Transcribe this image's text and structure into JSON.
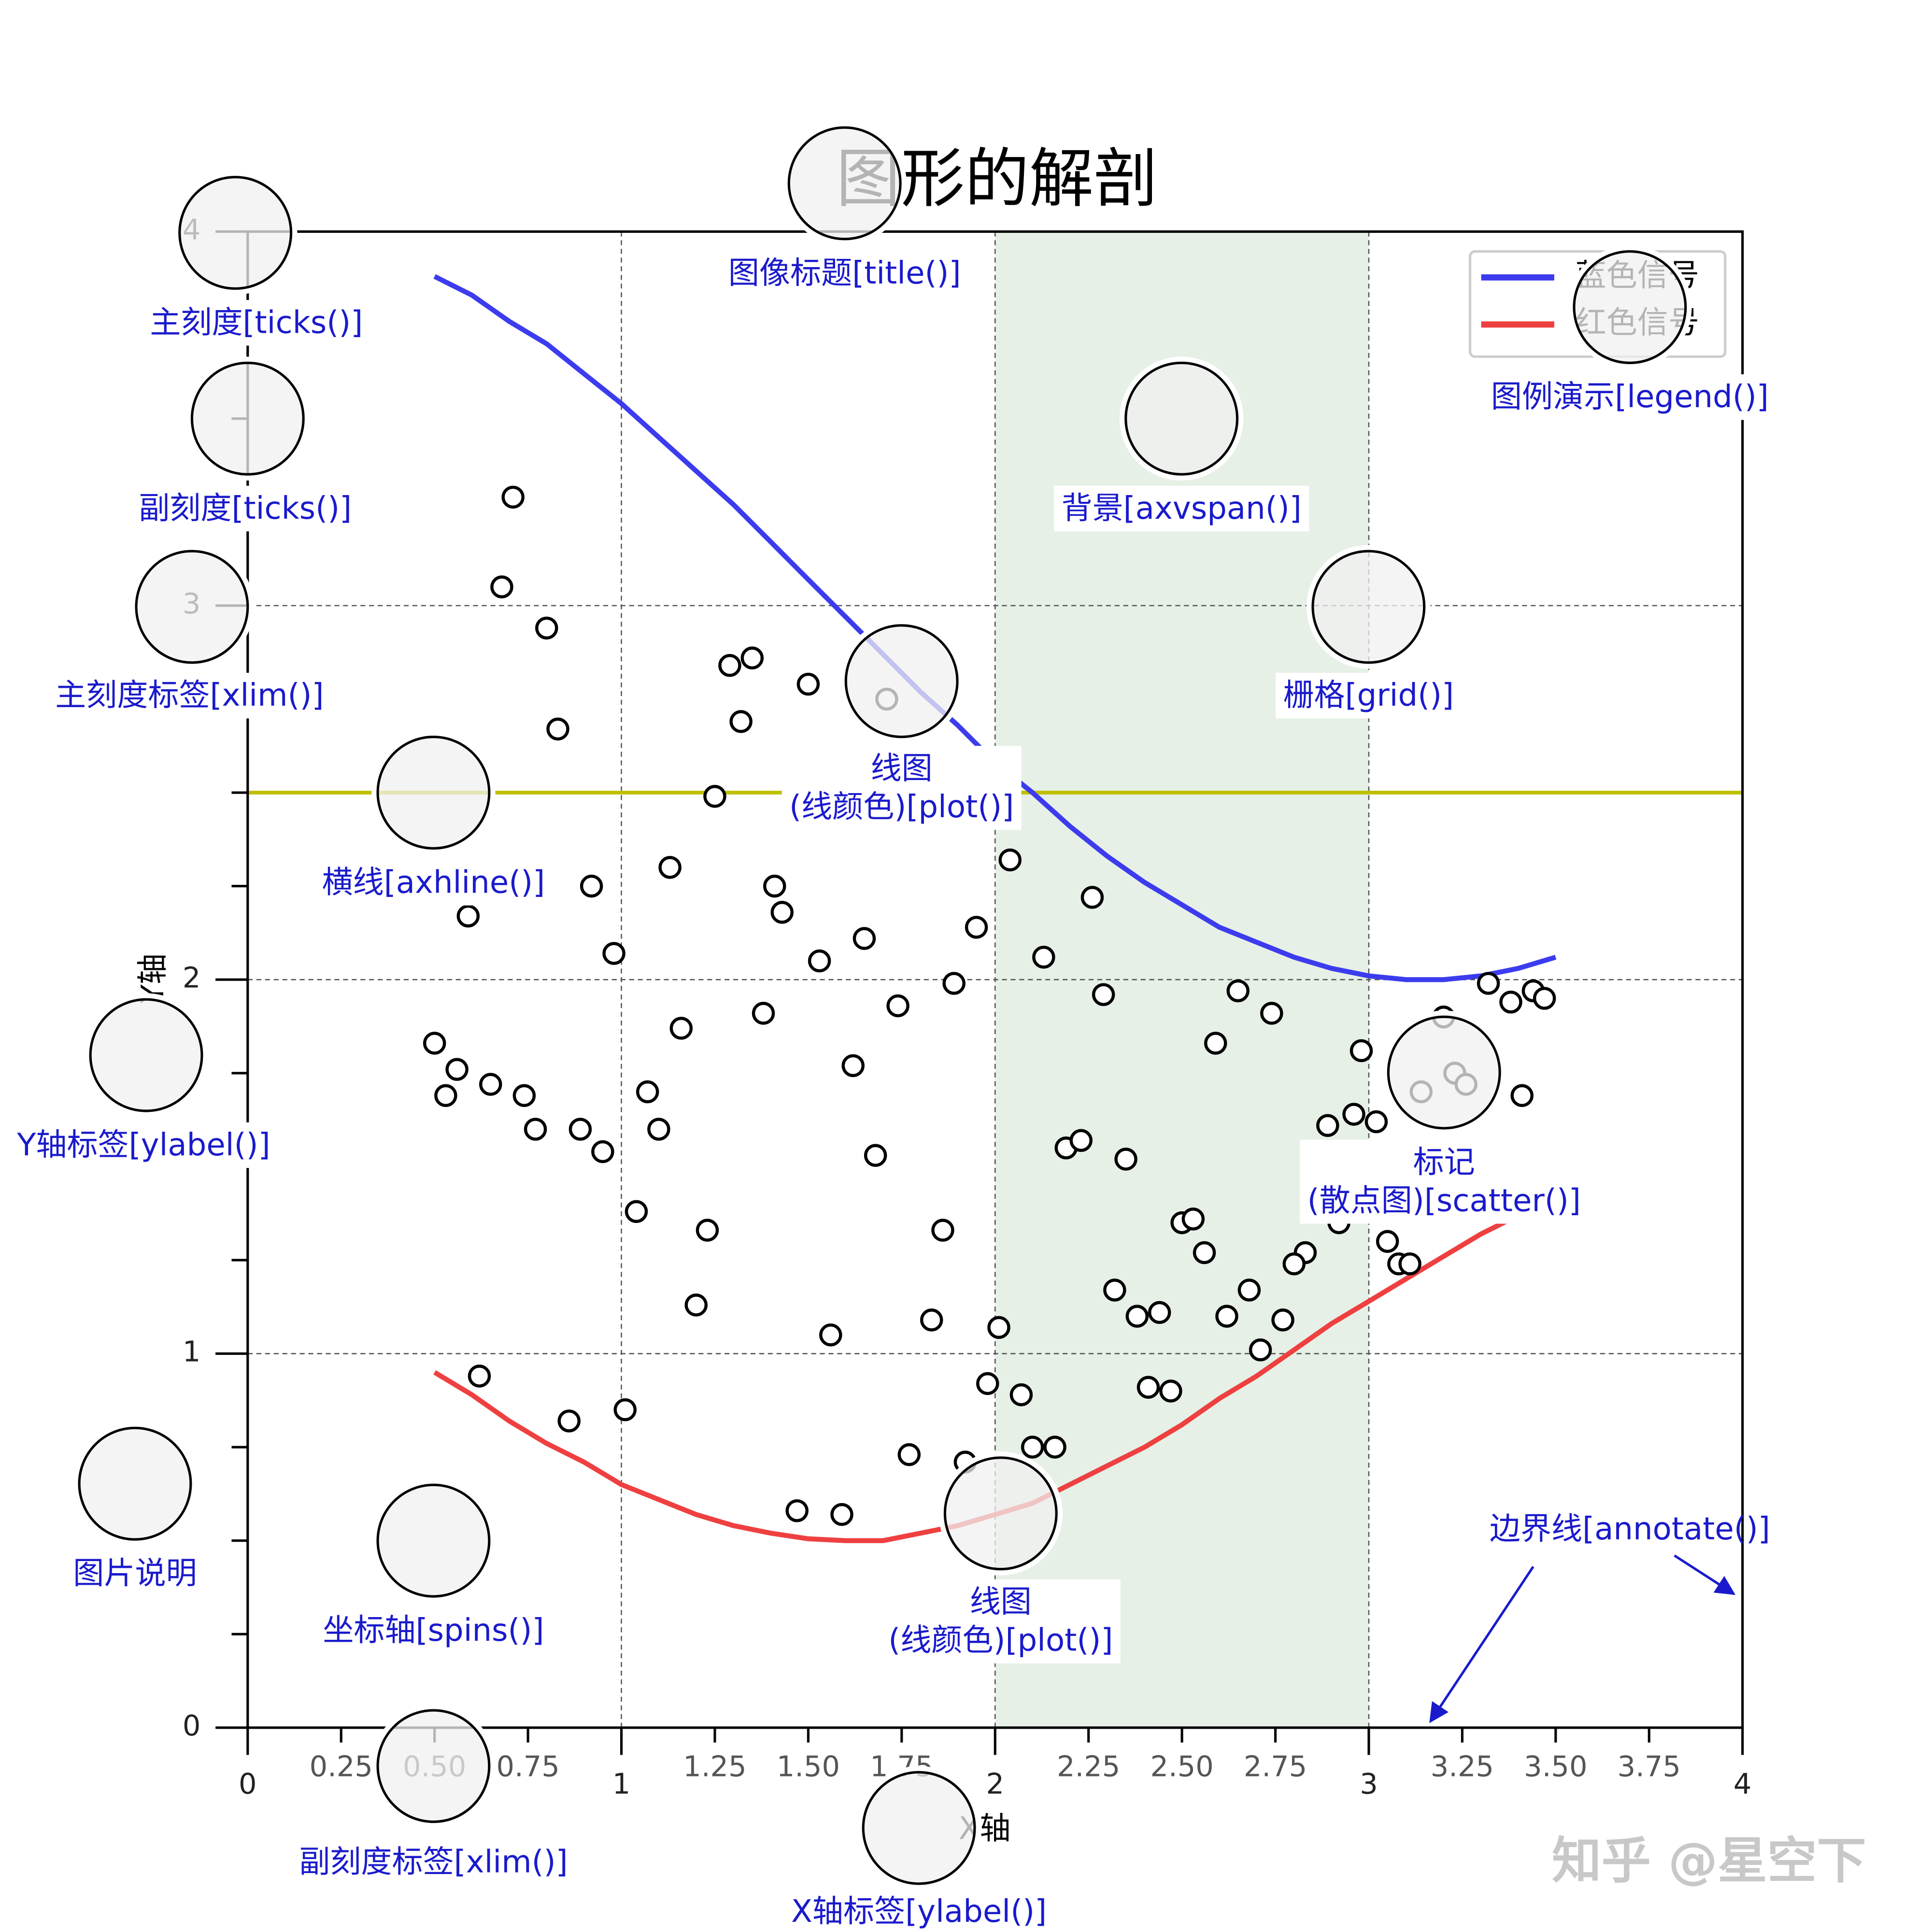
{
  "chart_data": {
    "type": "line",
    "title": "图形的解剖",
    "xlabel": "X轴",
    "ylabel": "Y轴",
    "xlim": [
      0,
      4
    ],
    "ylim": [
      0,
      4
    ],
    "xticks": [
      0,
      1,
      2,
      3,
      4
    ],
    "yticks": [
      0,
      1,
      2,
      3,
      4
    ],
    "xminor_ticks": [
      0.25,
      {
        "value": 0.5,
        "label": "0.50"
      },
      0.75,
      1.25,
      {
        "value": 1.5,
        "label": "1.50"
      },
      1.75,
      2.25,
      {
        "value": 2.5,
        "label": "2.50"
      },
      2.75,
      3.25,
      {
        "value": 3.5,
        "label": "3.50"
      },
      3.75
    ],
    "yminor_ticks": [
      0.25,
      0.5,
      0.75,
      1.25,
      1.5,
      1.75,
      2.25,
      2.5,
      2.75,
      3.25,
      3.5,
      3.75
    ],
    "grid": true,
    "axhline": 2.5,
    "axhline_color": "#bfbf00",
    "axvspan": [
      2,
      3
    ],
    "axvspan_color": "#e6f0e6",
    "legend": "upper right",
    "x": [
      0.5,
      0.6,
      0.7,
      0.8,
      0.9,
      1.0,
      1.1,
      1.2,
      1.3,
      1.4,
      1.5,
      1.6,
      1.7,
      1.8,
      1.9,
      2.0,
      2.1,
      2.2,
      2.3,
      2.4,
      2.5,
      2.6,
      2.7,
      2.8,
      2.9,
      3.0,
      3.1,
      3.2,
      3.3,
      3.4,
      3.5
    ],
    "series": [
      {
        "name": "蓝色信号",
        "color": "#3c3cee",
        "values": [
          3.88,
          3.83,
          3.76,
          3.7,
          3.62,
          3.54,
          3.45,
          3.36,
          3.27,
          3.17,
          3.07,
          2.97,
          2.87,
          2.77,
          2.68,
          2.58,
          2.5,
          2.41,
          2.33,
          2.26,
          2.2,
          2.14,
          2.1,
          2.06,
          2.03,
          2.01,
          2.0,
          2.0,
          2.01,
          2.03,
          2.06
        ]
      },
      {
        "name": "红色信号",
        "color": "#ee4040",
        "values": [
          0.95,
          0.89,
          0.82,
          0.76,
          0.71,
          0.65,
          0.61,
          0.57,
          0.54,
          0.52,
          0.505,
          0.5,
          0.5,
          0.52,
          0.54,
          0.57,
          0.6,
          0.65,
          0.7,
          0.75,
          0.81,
          0.88,
          0.94,
          1.01,
          1.08,
          1.14,
          1.2,
          1.26,
          1.32,
          1.37,
          1.41
        ]
      }
    ],
    "scatter": {
      "x": [
        0.71,
        0.68,
        0.8,
        0.83,
        1.29,
        1.35,
        1.32,
        1.5,
        1.71,
        1.25,
        1.13,
        1.41,
        1.43,
        0.92,
        0.59,
        0.98,
        1.53,
        1.65,
        2.04,
        2.26,
        1.95,
        2.13,
        1.89,
        2.29,
        1.74,
        1.38,
        1.16,
        0.5,
        0.56,
        0.53,
        0.65,
        0.74,
        0.77,
        0.89,
        0.95,
        1.07,
        1.1,
        1.62,
        1.68,
        2.19,
        2.23,
        2.35,
        2.65,
        2.74,
        2.59,
        2.98,
        3.23,
        3.26,
        3.14,
        3.41,
        3.32,
        3.38,
        3.44,
        3.47,
        2.96,
        3.02,
        1.04,
        1.23,
        1.2,
        1.86,
        2.5,
        2.53,
        2.56,
        3.05,
        3.08,
        3.11,
        2.83,
        2.8,
        2.32,
        2.38,
        2.44,
        2.68,
        2.62,
        2.77,
        2.71,
        1.83,
        2.01,
        1.56,
        0.62,
        1.01,
        0.86,
        1.98,
        2.07,
        2.41,
        2.47,
        1.77,
        2.1,
        2.16,
        1.47,
        1.59,
        3.2,
        2.89,
        1.92,
        2.92
      ],
      "values": [
        3.29,
        3.05,
        2.94,
        2.67,
        2.84,
        2.86,
        2.69,
        2.79,
        2.75,
        2.49,
        2.3,
        2.25,
        2.18,
        2.25,
        2.17,
        2.07,
        2.05,
        2.11,
        2.32,
        2.22,
        2.14,
        2.06,
        1.99,
        1.96,
        1.93,
        1.91,
        1.87,
        1.83,
        1.76,
        1.69,
        1.72,
        1.69,
        1.6,
        1.6,
        1.54,
        1.7,
        1.6,
        1.77,
        1.53,
        1.55,
        1.57,
        1.52,
        1.97,
        1.91,
        1.83,
        1.81,
        1.75,
        1.72,
        1.7,
        1.69,
        1.99,
        1.94,
        1.97,
        1.95,
        1.64,
        1.62,
        1.38,
        1.33,
        1.13,
        1.33,
        1.35,
        1.36,
        1.27,
        1.3,
        1.24,
        1.24,
        1.27,
        1.24,
        1.17,
        1.1,
        1.11,
        1.17,
        1.1,
        1.09,
        1.01,
        1.09,
        1.07,
        1.05,
        0.94,
        0.85,
        0.82,
        0.92,
        0.89,
        0.91,
        0.9,
        0.73,
        0.75,
        0.75,
        0.58,
        0.57,
        1.9,
        1.61,
        0.71,
        1.35
      ]
    },
    "annotations": [
      [
        "图像标题[title()]"
      ],
      [
        "主刻度[ticks()]"
      ],
      [
        "副刻度[ticks()]"
      ],
      [
        "主刻度标签[xlim()]"
      ],
      [
        "横线[axhline()]"
      ],
      [
        "Y轴标签[ylabel()]"
      ],
      [
        "图片说明"
      ],
      [
        "坐标轴[spins()]"
      ],
      [
        "副刻度标签[xlim()]"
      ],
      [
        "X轴标签[ylabel()]"
      ],
      [
        "线图",
        "(线颜色)[plot()]"
      ],
      [
        "线图",
        "(线颜色)[plot()]"
      ],
      [
        "背景[axvspan()]"
      ],
      [
        "栅格[grid()]"
      ],
      [
        "图例演示[legend()]"
      ],
      [
        "标记",
        "(散点图)[scatter()]"
      ],
      [
        "边界线[annotate()]"
      ]
    ],
    "watermark": "知乎 @星空下"
  }
}
